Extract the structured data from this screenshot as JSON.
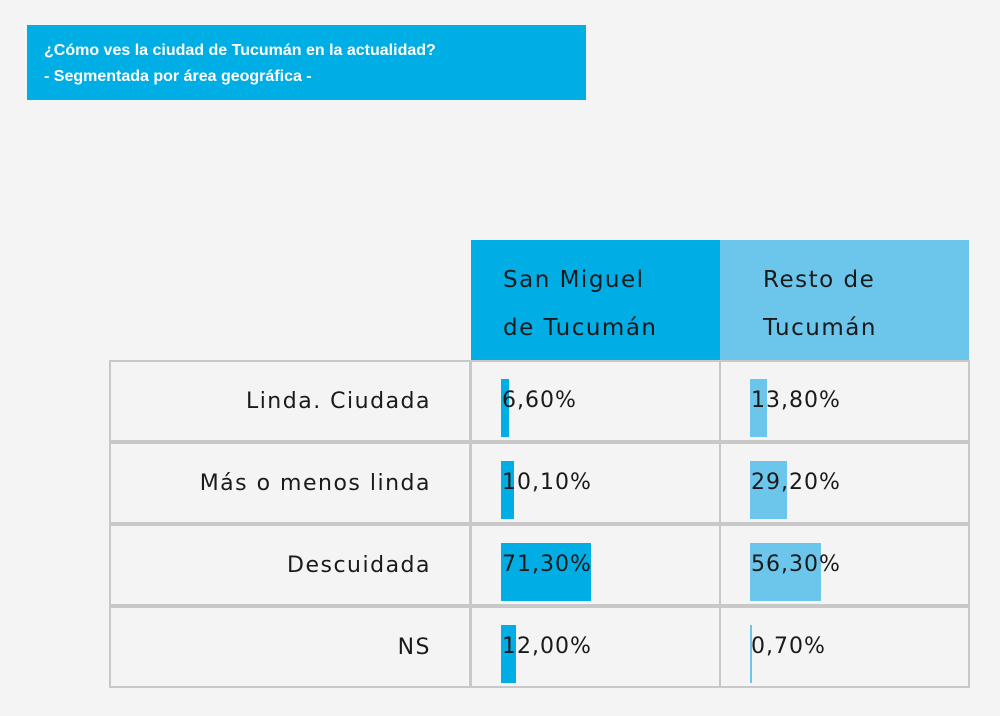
{
  "title": {
    "line1": "¿Cómo ves la ciudad de Tucumán en la actualidad?",
    "line2": "- Segmentada por área geográfica -"
  },
  "colors": {
    "title_bg": "#00aee6",
    "san_miguel": "#00ade4",
    "resto": "#6cc5ea",
    "border": "#c8c8c8"
  },
  "chart_data": {
    "type": "table",
    "columns": [
      "San Miguel de Tucumán",
      "Resto de Tucumán"
    ],
    "columns_display": [
      [
        "San Miguel",
        "de Tucumán"
      ],
      [
        "Resto de",
        "Tucumán"
      ]
    ],
    "categories": [
      "Linda. Ciudada",
      "Más o menos linda",
      "Descuidada",
      "NS"
    ],
    "series": [
      {
        "name": "San Miguel de Tucumán",
        "values": [
          6.6,
          10.1,
          71.3,
          12.0
        ],
        "labels": [
          "6,60%",
          "10,10%",
          "71,30%",
          "12,00%"
        ]
      },
      {
        "name": "Resto de Tucumán",
        "values": [
          13.8,
          29.2,
          56.3,
          0.7
        ],
        "labels": [
          "13,80%",
          "29,20%",
          "56,30%",
          "0,70%"
        ]
      }
    ]
  }
}
